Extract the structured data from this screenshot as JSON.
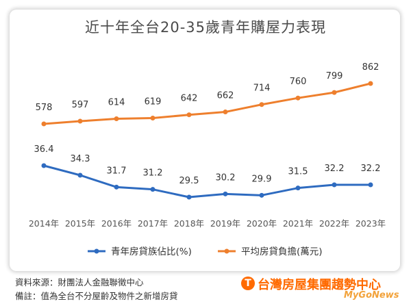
{
  "chart_data": {
    "type": "line",
    "title": "近十年全台20-35歲青年購屋力表現",
    "categories": [
      "2014年",
      "2015年",
      "2016年",
      "2017年",
      "2018年",
      "2019年",
      "2020年",
      "2021年",
      "2022年",
      "2023年"
    ],
    "series": [
      {
        "name": "青年房貸族佔比(%)",
        "color": "#2e6bc0",
        "values": [
          36.4,
          34.3,
          31.7,
          31.2,
          29.5,
          30.2,
          29.9,
          31.5,
          32.2,
          32.2
        ],
        "labels": [
          "36.4",
          "34.3",
          "31.7",
          "31.2",
          "29.5",
          "30.2",
          "29.9",
          "31.5",
          "32.2",
          "32.2"
        ]
      },
      {
        "name": "平均房貸負擔(萬元)",
        "color": "#ee7f2d",
        "values": [
          578,
          597,
          614,
          619,
          642,
          662,
          714,
          760,
          799,
          862
        ],
        "labels": [
          "578",
          "597",
          "614",
          "619",
          "642",
          "662",
          "714",
          "760",
          "799",
          "862"
        ]
      }
    ],
    "legend_position": "bottom",
    "grid": false
  },
  "footer": {
    "source": "資料來源：財團法人金融聯徵中心",
    "note": "備註：值為全台不分屋齡及物件之新增房貸"
  },
  "branding": {
    "name": "台灣房屋集團趨勢中心",
    "logo_letter": "T",
    "site": "MyGoNews"
  }
}
